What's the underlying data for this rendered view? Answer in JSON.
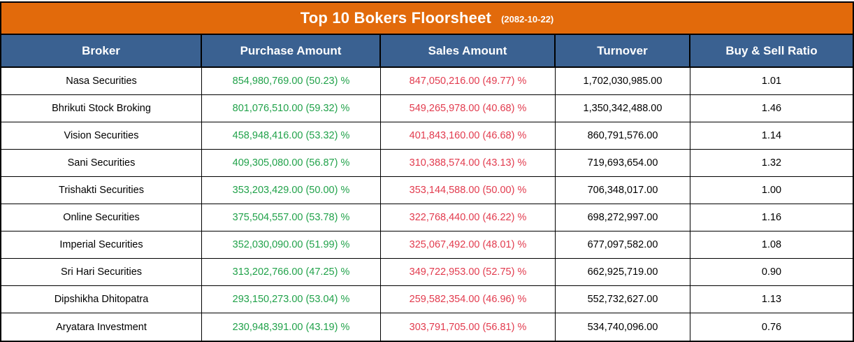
{
  "title": {
    "main": "Top 10 Bokers Floorsheet",
    "date": "(2082-10-22)"
  },
  "columns": [
    "Broker",
    "Purchase Amount",
    "Sales Amount",
    "Turnover",
    "Buy & Sell Ratio"
  ],
  "colors": {
    "accent_orange": "#E26A0B",
    "header_blue": "#3A6191",
    "purchase_green": "#21A24A",
    "sales_red": "#E23B4E",
    "border_black": "#000000",
    "text_black": "#000000",
    "title_white": "#FFFFFF"
  },
  "rows": [
    {
      "broker": "Nasa Securities",
      "purchase": "854,980,769.00 (50.23) %",
      "sales": "847,050,216.00 (49.77) %",
      "turnover": "1,702,030,985.00",
      "ratio": "1.01"
    },
    {
      "broker": "Bhrikuti Stock Broking",
      "purchase": "801,076,510.00 (59.32) %",
      "sales": "549,265,978.00 (40.68) %",
      "turnover": "1,350,342,488.00",
      "ratio": "1.46"
    },
    {
      "broker": "Vision Securities",
      "purchase": "458,948,416.00 (53.32) %",
      "sales": "401,843,160.00 (46.68) %",
      "turnover": "860,791,576.00",
      "ratio": "1.14"
    },
    {
      "broker": "Sani Securities",
      "purchase": "409,305,080.00 (56.87) %",
      "sales": "310,388,574.00 (43.13) %",
      "turnover": "719,693,654.00",
      "ratio": "1.32"
    },
    {
      "broker": "Trishakti Securities",
      "purchase": "353,203,429.00 (50.00) %",
      "sales": "353,144,588.00 (50.00) %",
      "turnover": "706,348,017.00",
      "ratio": "1.00"
    },
    {
      "broker": "Online Securities",
      "purchase": "375,504,557.00 (53.78) %",
      "sales": "322,768,440.00 (46.22) %",
      "turnover": "698,272,997.00",
      "ratio": "1.16"
    },
    {
      "broker": "Imperial Securities",
      "purchase": "352,030,090.00 (51.99) %",
      "sales": "325,067,492.00 (48.01) %",
      "turnover": "677,097,582.00",
      "ratio": "1.08"
    },
    {
      "broker": "Sri Hari Securities",
      "purchase": "313,202,766.00 (47.25) %",
      "sales": "349,722,953.00 (52.75) %",
      "turnover": "662,925,719.00",
      "ratio": "0.90"
    },
    {
      "broker": "Dipshikha Dhitopatra",
      "purchase": "293,150,273.00 (53.04) %",
      "sales": "259,582,354.00 (46.96) %",
      "turnover": "552,732,627.00",
      "ratio": "1.13"
    },
    {
      "broker": "Aryatara Investment",
      "purchase": "230,948,391.00 (43.19) %",
      "sales": "303,791,705.00 (56.81) %",
      "turnover": "534,740,096.00",
      "ratio": "0.76"
    }
  ],
  "chart_data": {
    "type": "table",
    "title": "Top 10 Bokers Floorsheet (2082-10-22)",
    "columns": [
      "Broker",
      "Purchase Amount",
      "Sales Amount",
      "Turnover",
      "Buy & Sell Ratio"
    ],
    "series": [
      {
        "name": "Purchase Amount",
        "values": [
          854980769.0,
          801076510.0,
          458948416.0,
          409305080.0,
          353203429.0,
          375504557.0,
          352030090.0,
          313202766.0,
          293150273.0,
          230948391.0
        ]
      },
      {
        "name": "Purchase Percent",
        "values": [
          50.23,
          59.32,
          53.32,
          56.87,
          50.0,
          53.78,
          51.99,
          47.25,
          53.04,
          43.19
        ]
      },
      {
        "name": "Sales Amount",
        "values": [
          847050216.0,
          549265978.0,
          401843160.0,
          310388574.0,
          353144588.0,
          322768440.0,
          325067492.0,
          349722953.0,
          259582354.0,
          303791705.0
        ]
      },
      {
        "name": "Sales Percent",
        "values": [
          49.77,
          40.68,
          46.68,
          43.13,
          50.0,
          46.22,
          48.01,
          52.75,
          46.96,
          56.81
        ]
      },
      {
        "name": "Turnover",
        "values": [
          1702030985.0,
          1350342488.0,
          860791576.0,
          719693654.0,
          706348017.0,
          698272997.0,
          677097582.0,
          662925719.0,
          552732627.0,
          534740096.0
        ]
      },
      {
        "name": "Buy & Sell Ratio",
        "values": [
          1.01,
          1.46,
          1.14,
          1.32,
          1.0,
          1.16,
          1.08,
          0.9,
          1.13,
          0.76
        ]
      }
    ],
    "categories": [
      "Nasa Securities",
      "Bhrikuti Stock Broking",
      "Vision Securities",
      "Sani Securities",
      "Trishakti Securities",
      "Online Securities",
      "Imperial Securities",
      "Sri Hari Securities",
      "Dipshikha Dhitopatra",
      "Aryatara Investment"
    ]
  }
}
